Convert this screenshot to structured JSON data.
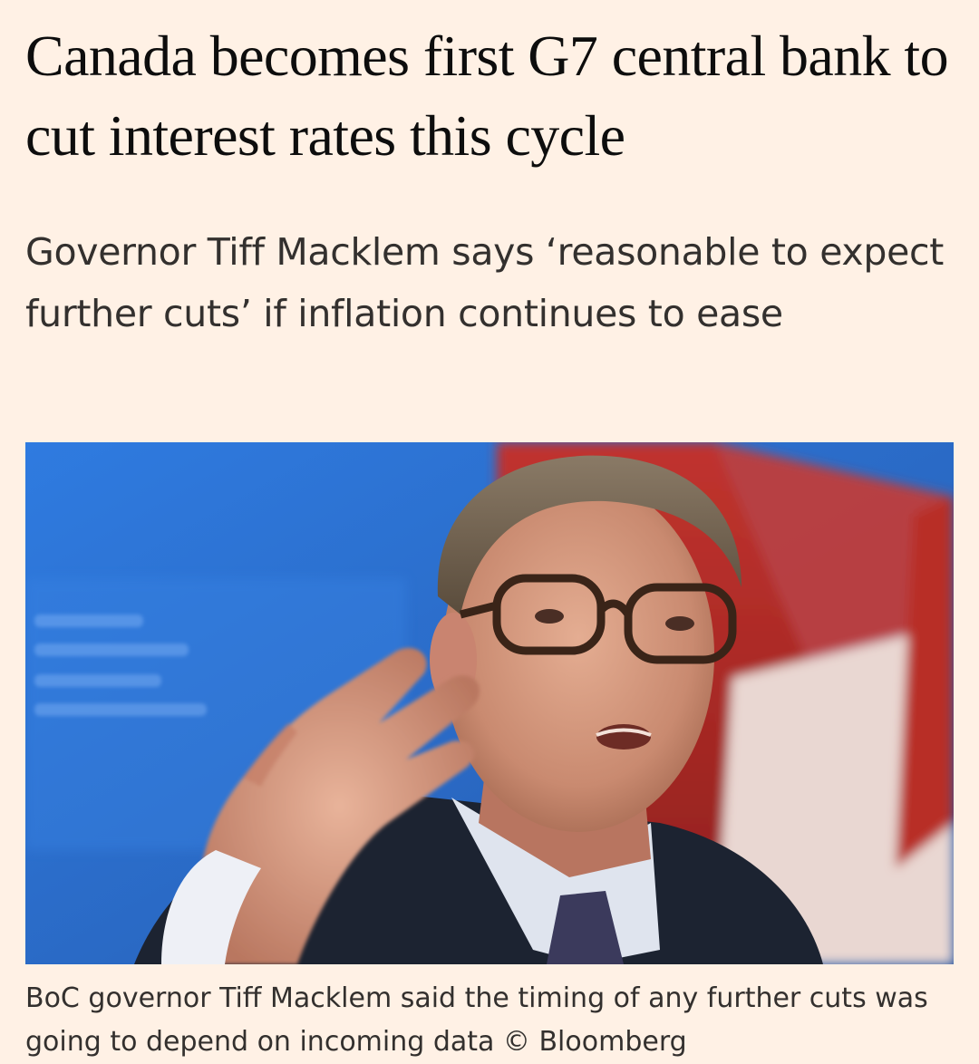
{
  "article": {
    "headline": "Canada becomes first G7 central bank to cut interest rates this cycle",
    "standfirst": "Governor Tiff Macklem says ‘reasonable to expect further cuts’ if inflation continues to ease",
    "caption": "BoC governor Tiff Macklem said the timing of any further cuts was going to depend on incoming data © Bloomberg"
  },
  "colors": {
    "page_background": "#fff1e5",
    "headline_text": "#0d0d0d",
    "body_text": "#33302e"
  }
}
